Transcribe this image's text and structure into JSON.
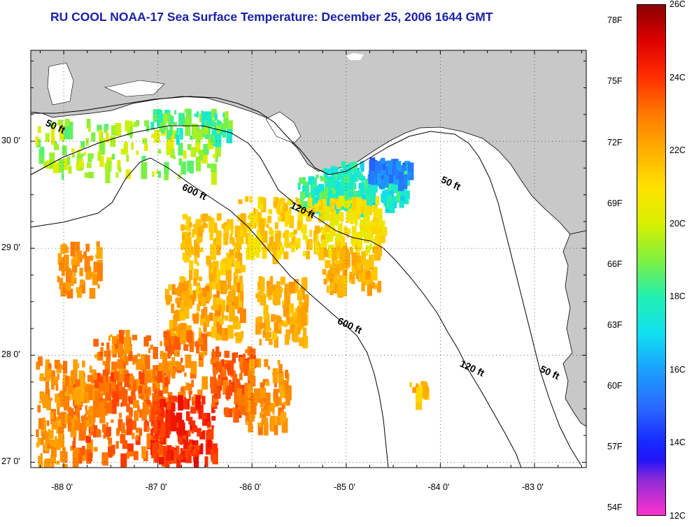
{
  "title": "RU COOL  NOAA-17  Sea Surface Temperature:  December 25, 2006 1644 GMT",
  "colorbar": {
    "fahrenheit_ticks": [
      "78F",
      "75F",
      "72F",
      "69F",
      "66F",
      "63F",
      "60F",
      "57F",
      "54F"
    ],
    "celsius_ticks": [
      "26C",
      "24C",
      "22C",
      "20C",
      "18C",
      "16C",
      "14C",
      "12C"
    ],
    "fahrenheit_values": [
      78,
      75,
      72,
      69,
      66,
      63,
      60,
      57,
      54
    ],
    "celsius_values": [
      26,
      24,
      22,
      20,
      18,
      16,
      14,
      12
    ],
    "range_c": [
      12,
      26
    ]
  },
  "map": {
    "lon_ticks": [
      "-88 0'",
      "-87 0'",
      "-86 0'",
      "-85 0'",
      "-84 0'",
      "-83 0'"
    ],
    "lat_ticks": [
      "30 0'",
      "29 0'",
      "28 0'",
      "27 0'"
    ],
    "lon_values": [
      -88,
      -87,
      -86,
      -85,
      -84,
      -83
    ],
    "lat_values": [
      30,
      29,
      28,
      27
    ],
    "lon_range": [
      -88.35,
      -82.45
    ],
    "lat_range": [
      26.95,
      30.85
    ],
    "grid": "dotted",
    "land_color": "#c8c8c8",
    "contour_labels": [
      {
        "text": "50 ft",
        "lon": -88.2,
        "lat": 30.15
      },
      {
        "text": "600 ft",
        "lon": -86.75,
        "lat": 29.55
      },
      {
        "text": "120 ft",
        "lon": -85.6,
        "lat": 29.38
      },
      {
        "text": "50 ft",
        "lon": -84.0,
        "lat": 29.62
      },
      {
        "text": "600 ft",
        "lon": -85.1,
        "lat": 28.3
      },
      {
        "text": "120 ft",
        "lon": -83.8,
        "lat": 27.9
      },
      {
        "text": "50 ft",
        "lon": -82.95,
        "lat": 27.85
      }
    ]
  }
}
